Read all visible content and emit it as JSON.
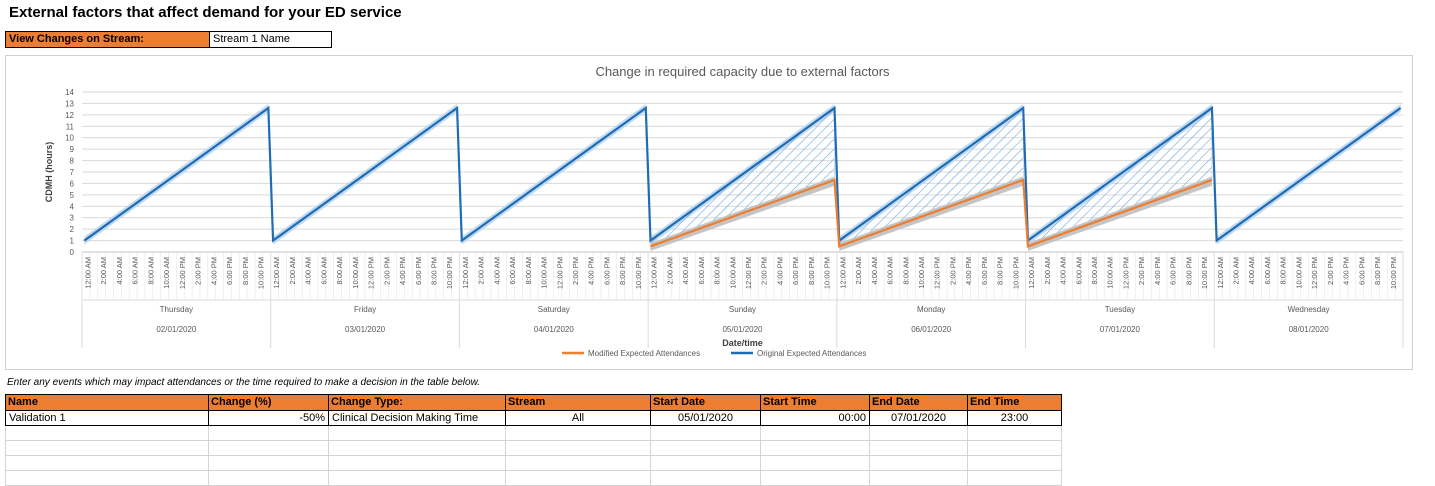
{
  "page": {
    "title": "External factors that affect demand for your ED service",
    "stream_label": "View Changes on Stream:",
    "stream_value": "Stream 1 Name",
    "hint": "Enter any events which may impact attendances or the time required to make a decision in the table below."
  },
  "chart_data": {
    "type": "line",
    "title": "Change in required capacity due to external factors",
    "xlabel": "Date/time",
    "ylabel": "CDMH (hours)",
    "ylim": [
      0,
      14
    ],
    "yticks": [
      "0",
      "1",
      "2",
      "3",
      "4",
      "5",
      "6",
      "7",
      "8",
      "9",
      "10",
      "11",
      "12",
      "13",
      "14"
    ],
    "hour_ticks": [
      "12:00 AM",
      "2:00 AM",
      "4:00 AM",
      "6:00 AM",
      "8:00 AM",
      "10:00 AM",
      "12:00 PM",
      "2:00 PM",
      "4:00 PM",
      "6:00 PM",
      "8:00 PM",
      "10:00 PM"
    ],
    "days": [
      {
        "day": "Thursday",
        "date": "02/01/2020"
      },
      {
        "day": "Friday",
        "date": "03/01/2020"
      },
      {
        "day": "Saturday",
        "date": "04/01/2020"
      },
      {
        "day": "Sunday",
        "date": "05/01/2020"
      },
      {
        "day": "Monday",
        "date": "06/01/2020"
      },
      {
        "day": "Tuesday",
        "date": "07/01/2020"
      },
      {
        "day": "Wednesday",
        "date": "08/01/2020"
      }
    ],
    "series": [
      {
        "name": "Modified Expected Attendances",
        "color": "#ED7D31",
        "daily_start": [
          null,
          null,
          null,
          0.5,
          0.5,
          0.5,
          null
        ],
        "daily_end": [
          null,
          null,
          null,
          6.3,
          6.3,
          6.3,
          null
        ]
      },
      {
        "name": "Original Expected Attendances",
        "color": "#1F6CB5",
        "daily_start": [
          1.0,
          1.0,
          1.0,
          1.0,
          1.0,
          1.0,
          1.0
        ],
        "daily_end": [
          12.6,
          12.6,
          12.6,
          12.6,
          12.6,
          12.6,
          12.6
        ]
      }
    ],
    "grid": true,
    "legend_position": "bottom"
  },
  "table": {
    "headers": [
      "Name",
      "Change (%)",
      "Change Type:",
      "Stream",
      "Start Date",
      "Start Time",
      "End Date",
      "End Time"
    ],
    "rows": [
      [
        "Validation 1",
        "-50%",
        "Clinical Decision Making Time",
        "All",
        "05/01/2020",
        "00:00",
        "07/01/2020",
        "23:00"
      ]
    ]
  }
}
